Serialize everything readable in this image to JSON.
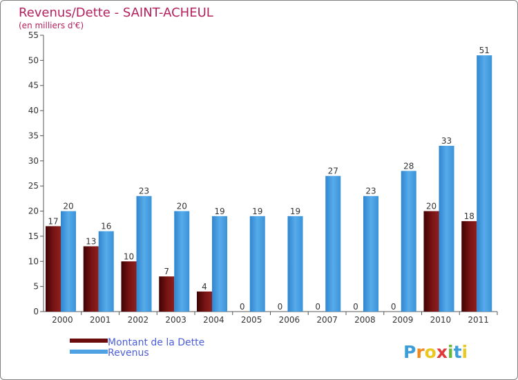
{
  "chart_data": {
    "type": "bar",
    "title": "Revenus/Dette - SAINT-ACHEUL",
    "subtitle": "(en milliers d'€)",
    "categories": [
      "2000",
      "2001",
      "2002",
      "2003",
      "2004",
      "2005",
      "2006",
      "2007",
      "2008",
      "2009",
      "2010",
      "2011"
    ],
    "series": [
      {
        "name": "Montant de la Dette",
        "color": "#6b0d0d",
        "values": [
          17,
          13,
          10,
          7,
          4,
          0,
          0,
          0,
          0,
          0,
          20,
          18
        ]
      },
      {
        "name": "Revenus",
        "color": "#4ea2e3",
        "values": [
          20,
          16,
          23,
          20,
          19,
          19,
          19,
          27,
          23,
          28,
          33,
          51
        ]
      }
    ],
    "ylim": [
      0,
      55
    ],
    "yticks": [
      0,
      5,
      10,
      15,
      20,
      25,
      30,
      35,
      40,
      45,
      50,
      55
    ],
    "grid": false,
    "legend_position": "bottom-left",
    "xlabel": "",
    "ylabel": ""
  },
  "branding": {
    "logo_text": "Proxiti"
  }
}
